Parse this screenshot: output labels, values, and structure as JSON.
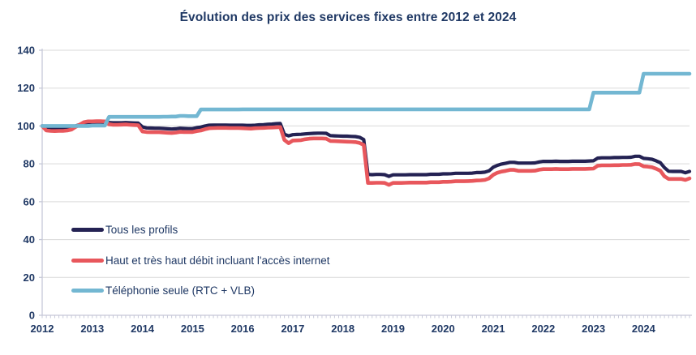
{
  "chart_data": {
    "type": "line",
    "title": "Évolution des prix des services fixes entre 2012 et 2024",
    "year_labels": [
      "2012",
      "2013",
      "2014",
      "2015",
      "2016",
      "2017",
      "2018",
      "2019",
      "2020",
      "2021",
      "2022",
      "2023",
      "2024"
    ],
    "points_per_year": 12,
    "x_range_note": "monthly index values, Jan 2012 = 100, Jan 2012 to Dec 2024",
    "ylim": [
      0,
      140
    ],
    "yticks": [
      0,
      20,
      40,
      60,
      80,
      100,
      120,
      140
    ],
    "grid": "horizontal",
    "legend_position": "inside-bottom-left",
    "colors": {
      "text": "#1F3864",
      "grid": "#D9D9D9",
      "axis": "#C6C8D8",
      "background": "#FFFFFF"
    },
    "series": [
      {
        "name": "Tous les profils",
        "color": "#242253",
        "values": [
          100,
          99.0,
          98.9,
          98.9,
          98.9,
          98.9,
          99.1,
          99.4,
          100.0,
          100.7,
          101.5,
          101.9,
          102.0,
          102.1,
          102.1,
          102.0,
          101.8,
          101.7,
          101.7,
          101.7,
          101.8,
          101.7,
          101.6,
          101.5,
          99.5,
          99.0,
          98.9,
          98.8,
          98.8,
          98.7,
          98.5,
          98.4,
          98.5,
          98.8,
          98.7,
          98.6,
          98.6,
          99.1,
          99.4,
          100.0,
          100.4,
          100.5,
          100.5,
          100.5,
          100.5,
          100.4,
          100.4,
          100.4,
          100.4,
          100.3,
          100.3,
          100.4,
          100.6,
          100.7,
          100.9,
          101.0,
          101.2,
          101.3,
          95.6,
          94.8,
          95.4,
          95.5,
          95.6,
          95.8,
          96.0,
          96.1,
          96.2,
          96.2,
          96.1,
          94.9,
          94.8,
          94.7,
          94.6,
          94.6,
          94.5,
          94.4,
          94.0,
          92.8,
          74.4,
          74.3,
          74.4,
          74.4,
          74.3,
          73.4,
          74.2,
          74.2,
          74.2,
          74.2,
          74.3,
          74.3,
          74.3,
          74.3,
          74.3,
          74.5,
          74.5,
          74.5,
          74.7,
          74.7,
          74.8,
          75.0,
          75.0,
          75.0,
          75.0,
          75.1,
          75.4,
          75.4,
          75.6,
          76.3,
          78.2,
          79.2,
          79.9,
          80.3,
          80.8,
          80.8,
          80.4,
          80.4,
          80.4,
          80.4,
          80.5,
          81.0,
          81.3,
          81.3,
          81.3,
          81.4,
          81.3,
          81.3,
          81.3,
          81.4,
          81.4,
          81.4,
          81.4,
          81.5,
          81.6,
          83.0,
          83.2,
          83.2,
          83.2,
          83.3,
          83.3,
          83.4,
          83.4,
          83.5,
          84.0,
          84.0,
          82.9,
          82.7,
          82.4,
          81.6,
          80.6,
          78.0,
          76.1,
          76.0,
          76.0,
          76.0,
          75.3,
          76.0
        ]
      },
      {
        "name": "Haut et très haut débit incluant l'accès internet",
        "color": "#E8575C",
        "values": [
          100,
          97.6,
          97.4,
          97.3,
          97.4,
          97.4,
          97.6,
          98.1,
          99.5,
          100.7,
          102.0,
          102.4,
          102.4,
          102.5,
          102.5,
          102.4,
          100.9,
          100.6,
          100.6,
          100.7,
          100.8,
          100.6,
          100.5,
          100.4,
          97.1,
          96.8,
          96.7,
          96.7,
          96.7,
          96.6,
          96.4,
          96.3,
          96.5,
          96.9,
          96.8,
          96.8,
          96.8,
          97.3,
          97.6,
          98.3,
          98.8,
          98.9,
          99.0,
          99.0,
          99.0,
          98.9,
          98.9,
          98.9,
          98.8,
          98.7,
          98.6,
          98.8,
          98.9,
          99.0,
          99.1,
          99.2,
          99.3,
          99.4,
          92.6,
          90.9,
          92.3,
          92.4,
          92.5,
          93.0,
          93.3,
          93.4,
          93.4,
          93.4,
          93.3,
          92.1,
          92.0,
          91.9,
          91.8,
          91.7,
          91.6,
          91.5,
          91.0,
          90.0,
          69.9,
          69.9,
          70.0,
          70.0,
          69.9,
          68.9,
          69.9,
          69.9,
          69.9,
          70.0,
          70.1,
          70.1,
          70.1,
          70.1,
          70.1,
          70.3,
          70.3,
          70.3,
          70.5,
          70.5,
          70.6,
          70.8,
          70.8,
          70.8,
          70.9,
          71.0,
          71.2,
          71.3,
          71.5,
          72.3,
          74.2,
          75.3,
          75.9,
          76.3,
          76.8,
          76.8,
          76.3,
          76.3,
          76.3,
          76.3,
          76.4,
          76.9,
          77.2,
          77.2,
          77.2,
          77.3,
          77.2,
          77.2,
          77.2,
          77.3,
          77.3,
          77.3,
          77.3,
          77.4,
          77.5,
          79.0,
          79.2,
          79.2,
          79.2,
          79.3,
          79.3,
          79.4,
          79.4,
          79.5,
          79.9,
          79.8,
          78.7,
          78.5,
          78.2,
          77.4,
          76.4,
          73.4,
          72.0,
          72.0,
          72.0,
          72.0,
          71.5,
          72.3
        ]
      },
      {
        "name": "Téléphonie seule (RTC + VLB)",
        "color": "#73B7D2",
        "values": [
          100,
          100,
          100,
          100,
          100,
          100,
          100,
          100,
          100,
          100,
          100,
          100,
          100.2,
          100.2,
          100.2,
          100.2,
          104.8,
          104.8,
          104.8,
          104.8,
          104.8,
          104.8,
          104.8,
          104.8,
          104.8,
          104.8,
          104.8,
          104.8,
          104.8,
          104.9,
          104.9,
          105.0,
          105.0,
          105.3,
          105.3,
          105.2,
          105.2,
          105.2,
          108.7,
          108.7,
          108.7,
          108.7,
          108.7,
          108.7,
          108.7,
          108.7,
          108.7,
          108.7,
          108.8,
          108.8,
          108.8,
          108.8,
          108.8,
          108.8,
          108.8,
          108.8,
          108.8,
          108.8,
          108.8,
          108.8,
          108.8,
          108.8,
          108.8,
          108.8,
          108.8,
          108.8,
          108.8,
          108.8,
          108.8,
          108.8,
          108.8,
          108.8,
          108.8,
          108.8,
          108.8,
          108.8,
          108.8,
          108.8,
          108.8,
          108.8,
          108.8,
          108.8,
          108.8,
          108.8,
          108.8,
          108.8,
          108.8,
          108.8,
          108.8,
          108.8,
          108.8,
          108.8,
          108.8,
          108.8,
          108.8,
          108.8,
          108.8,
          108.8,
          108.8,
          108.8,
          108.8,
          108.8,
          108.8,
          108.8,
          108.8,
          108.8,
          108.8,
          108.8,
          108.8,
          108.8,
          108.8,
          108.8,
          108.8,
          108.8,
          108.8,
          108.8,
          108.8,
          108.8,
          108.8,
          108.8,
          108.8,
          108.8,
          108.8,
          108.8,
          108.8,
          108.8,
          108.8,
          108.8,
          108.8,
          108.8,
          108.8,
          108.8,
          117.6,
          117.6,
          117.6,
          117.6,
          117.6,
          117.6,
          117.6,
          117.6,
          117.6,
          117.6,
          117.6,
          117.6,
          127.6,
          127.6,
          127.6,
          127.6,
          127.6,
          127.6,
          127.6,
          127.6,
          127.6,
          127.6,
          127.6,
          127.6
        ]
      }
    ]
  }
}
